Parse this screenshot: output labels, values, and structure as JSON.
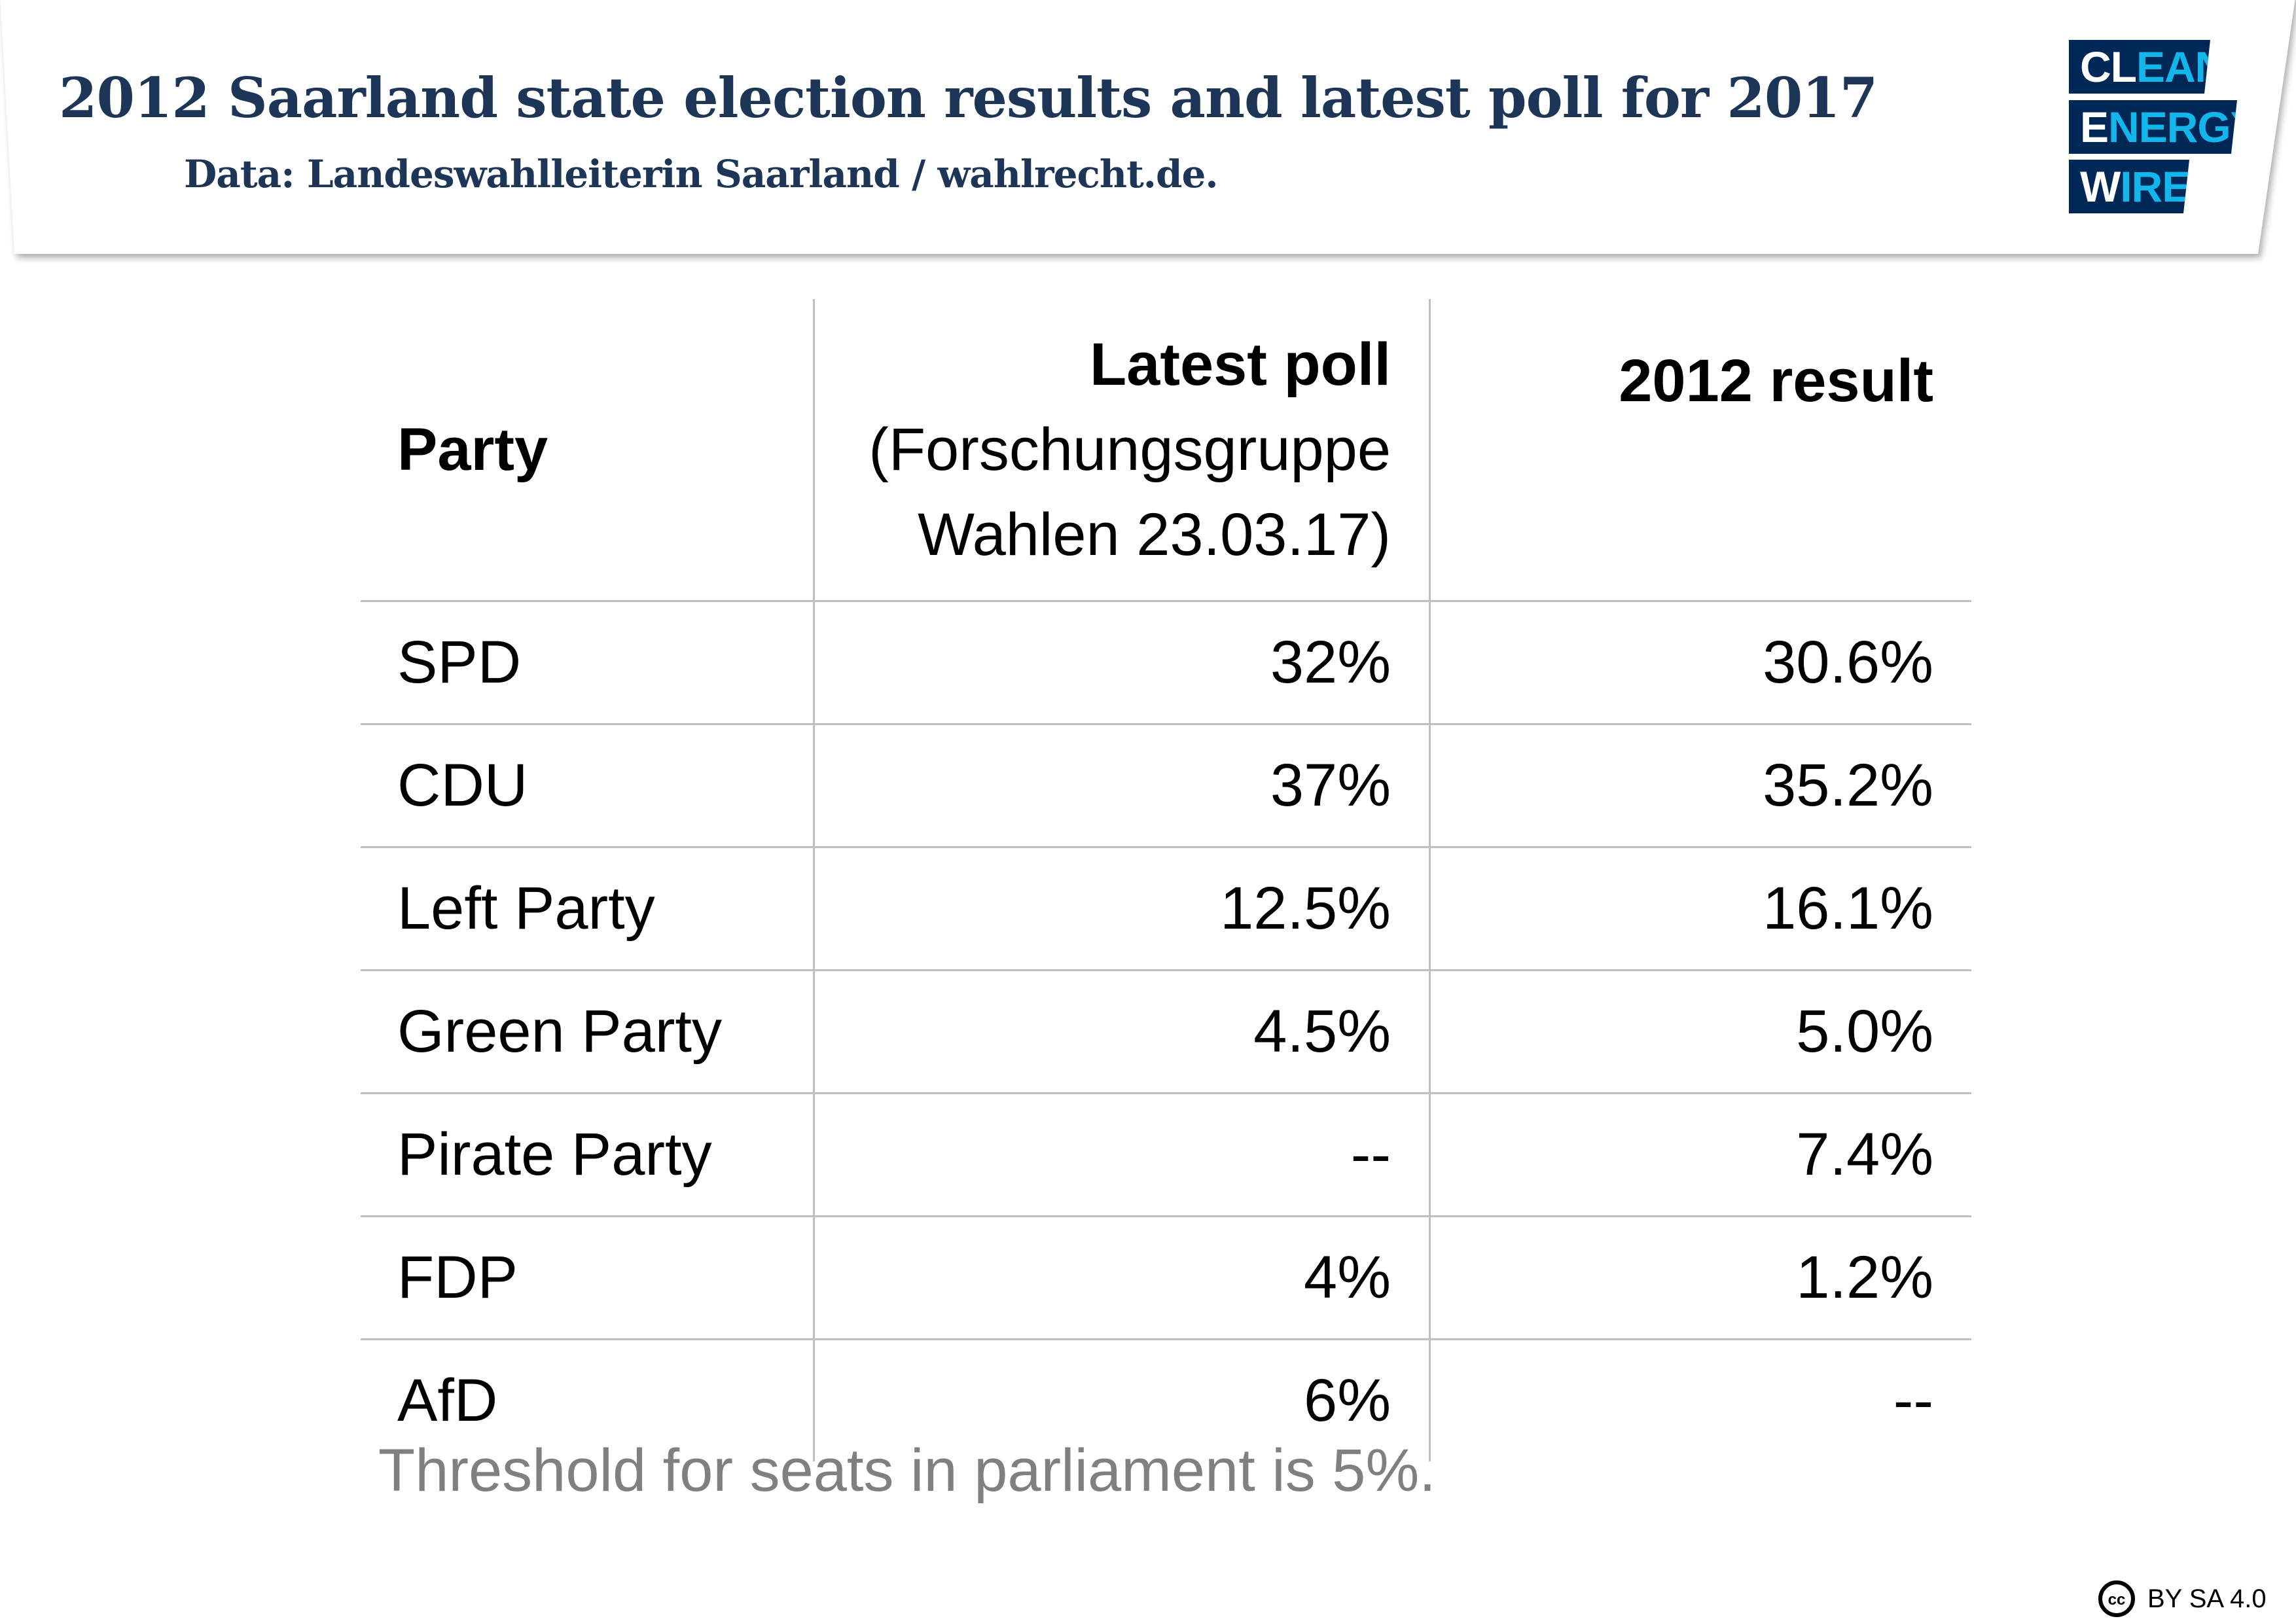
{
  "header": {
    "title": "2012 Saarland state election results and latest poll for 2017",
    "subtitle": "Data: Landeswahlleiterin Saarland / wahlrecht.de."
  },
  "logo": {
    "line1a": "CL",
    "line1b": "EAN",
    "line2a": "E",
    "line2b": "NERGY",
    "line3a": "W",
    "line3b": "IRE",
    "colors": {
      "navy": "#002856",
      "cyan": "#12b6ea"
    }
  },
  "table": {
    "headers": {
      "party": "Party",
      "poll_title": "Latest poll",
      "poll_sub1": "(Forschungsgruppe",
      "poll_sub2": "Wahlen 23.03.17)",
      "result": "2012 result"
    },
    "rows": [
      {
        "party": "SPD",
        "poll": "32%",
        "result": "30.6%"
      },
      {
        "party": "CDU",
        "poll": "37%",
        "result": "35.2%"
      },
      {
        "party": "Left Party",
        "poll": "12.5%",
        "result": "16.1%"
      },
      {
        "party": "Green Party",
        "poll": "4.5%",
        "result": "5.0%"
      },
      {
        "party": "Pirate Party",
        "poll": "--",
        "result": "7.4%"
      },
      {
        "party": "FDP",
        "poll": "4%",
        "result": "1.2%"
      },
      {
        "party": "AfD",
        "poll": "6%",
        "result": "--"
      }
    ]
  },
  "footnote": "Threshold for seats in parliament is 5%.",
  "license": {
    "icon": "creative-commons-icon",
    "text": "BY SA 4.0"
  }
}
